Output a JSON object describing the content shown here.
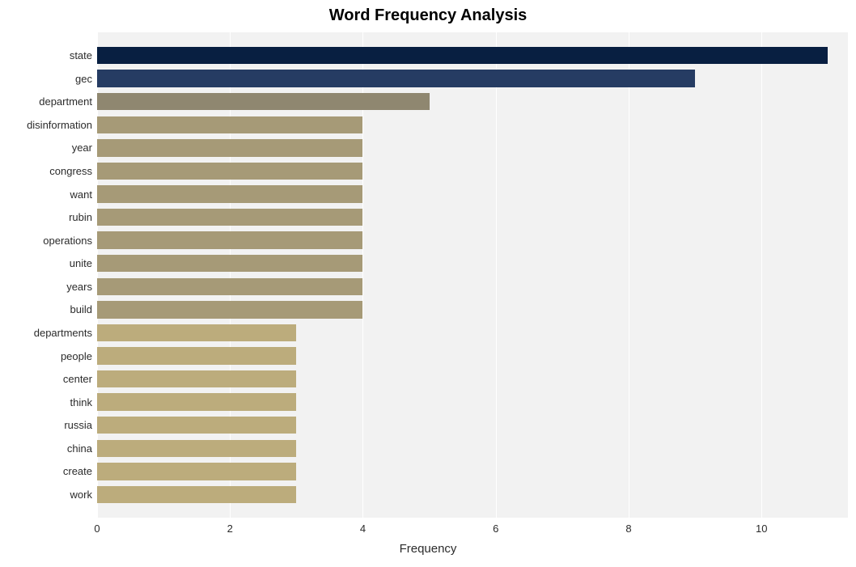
{
  "chart": {
    "type": "bar-horizontal",
    "title": "Word Frequency Analysis",
    "title_fontsize": 20,
    "title_fontweight": "bold",
    "title_color": "#000000",
    "xlabel": "Frequency",
    "xlabel_fontsize": 15,
    "xlabel_color": "#2b2b2b",
    "background_color": "#ffffff",
    "plot_slot_background": "#f2f2f2",
    "gridline_color": "#ffffff",
    "xlim": [
      0,
      11.3
    ],
    "x_ticks": [
      0,
      2,
      4,
      6,
      8,
      10
    ],
    "x_tick_fontsize": 13,
    "y_tick_fontsize": 13,
    "y_tick_color": "#2b2b2b",
    "bar_width_ratio": 0.75,
    "bars": [
      {
        "label": "state",
        "value": 11,
        "color": "#081f41"
      },
      {
        "label": "gec",
        "value": 9,
        "color": "#263c63"
      },
      {
        "label": "department",
        "value": 5,
        "color": "#8f8770"
      },
      {
        "label": "disinformation",
        "value": 4,
        "color": "#a69a77"
      },
      {
        "label": "year",
        "value": 4,
        "color": "#a69a77"
      },
      {
        "label": "congress",
        "value": 4,
        "color": "#a69a77"
      },
      {
        "label": "want",
        "value": 4,
        "color": "#a69a77"
      },
      {
        "label": "rubin",
        "value": 4,
        "color": "#a69a77"
      },
      {
        "label": "operations",
        "value": 4,
        "color": "#a69a77"
      },
      {
        "label": "unite",
        "value": 4,
        "color": "#a69a77"
      },
      {
        "label": "years",
        "value": 4,
        "color": "#a69a77"
      },
      {
        "label": "build",
        "value": 4,
        "color": "#a69a77"
      },
      {
        "label": "departments",
        "value": 3,
        "color": "#bcac7c"
      },
      {
        "label": "people",
        "value": 3,
        "color": "#bcac7c"
      },
      {
        "label": "center",
        "value": 3,
        "color": "#bcac7c"
      },
      {
        "label": "think",
        "value": 3,
        "color": "#bcac7c"
      },
      {
        "label": "russia",
        "value": 3,
        "color": "#bcac7c"
      },
      {
        "label": "china",
        "value": 3,
        "color": "#bcac7c"
      },
      {
        "label": "create",
        "value": 3,
        "color": "#bcac7c"
      },
      {
        "label": "work",
        "value": 3,
        "color": "#bcac7c"
      }
    ]
  }
}
